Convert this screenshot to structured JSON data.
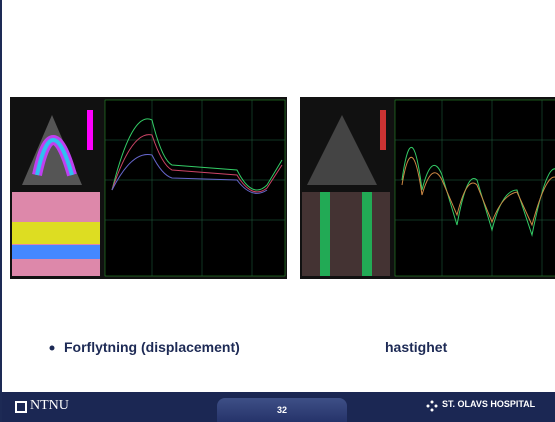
{
  "bullet": {
    "left": "Forflytning (displacement)",
    "right": "hastighet"
  },
  "footer": {
    "logo": "NTNU",
    "page": "32",
    "hospital": "ST. OLAVS HOSPITAL"
  }
}
